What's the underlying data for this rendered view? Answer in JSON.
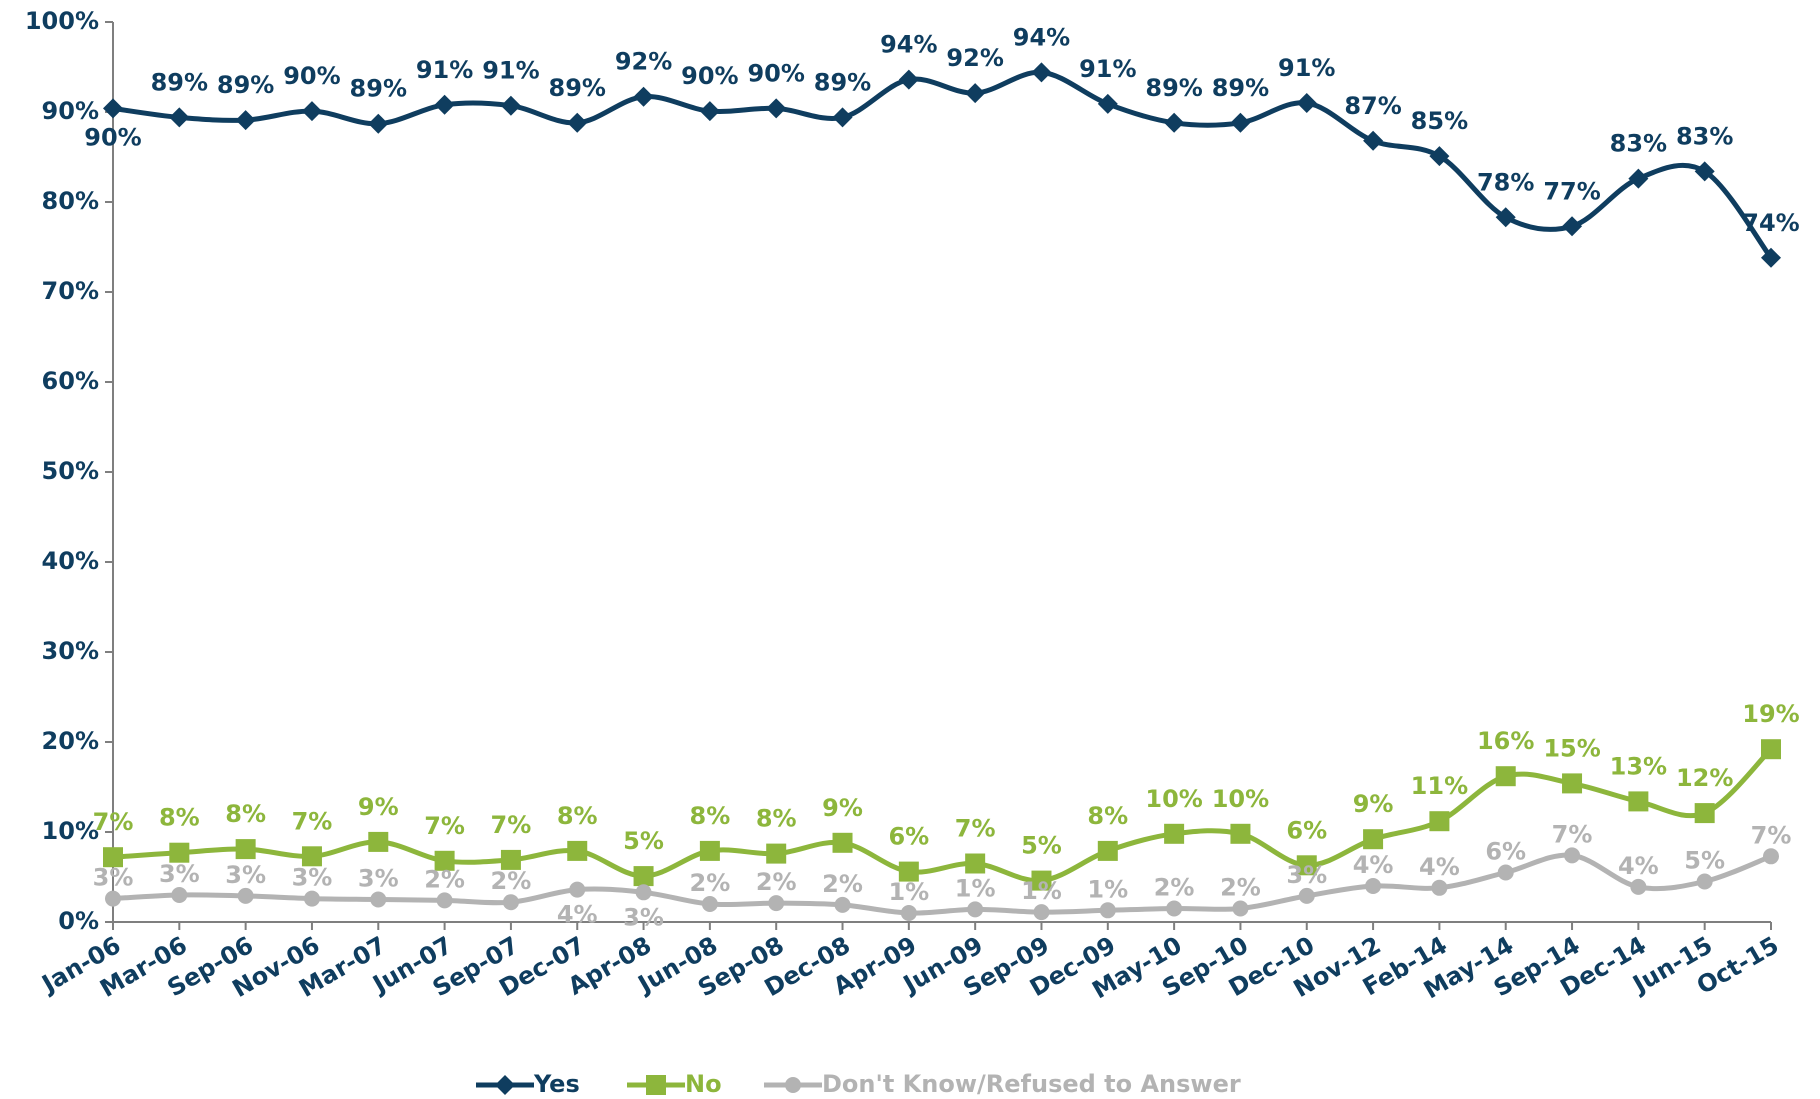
{
  "chart_data": {
    "type": "line",
    "categories": [
      "Jan-06",
      "Mar-06",
      "Sep-06",
      "Nov-06",
      "Mar-07",
      "Jun-07",
      "Sep-07",
      "Dec-07",
      "Apr-08",
      "Jun-08",
      "Sep-08",
      "Dec-08",
      "Apr-09",
      "Jun-09",
      "Sep-09",
      "Dec-09",
      "May-10",
      "Sep-10",
      "Dec-10",
      "Nov-12",
      "Feb-14",
      "May-14",
      "Sep-14",
      "Dec-14",
      "Jun-15",
      "Oct-15"
    ],
    "series": [
      {
        "name": "Yes",
        "color": "#0f3d5f",
        "marker": "diamond",
        "values": [
          90.4,
          89.4,
          89.1,
          90.1,
          88.7,
          90.8,
          90.7,
          88.8,
          91.7,
          90.1,
          90.4,
          89.4,
          93.6,
          92.1,
          94.4,
          90.9,
          88.8,
          88.8,
          91.0,
          86.8,
          85.1,
          78.3,
          77.3,
          82.6,
          83.4,
          73.8
        ],
        "value_labels": [
          "90%",
          "89%",
          "89%",
          "90%",
          "89%",
          "91%",
          "91%",
          "89%",
          "92%",
          "90%",
          "90%",
          "89%",
          "94%",
          "92%",
          "94%",
          "91%",
          "89%",
          "89%",
          "91%",
          "87%",
          "85%",
          "78%",
          "77%",
          "83%",
          "83%",
          "74%"
        ]
      },
      {
        "name": "No",
        "color": "#8db63c",
        "marker": "square",
        "values": [
          7.2,
          7.7,
          8.1,
          7.3,
          8.9,
          6.8,
          6.9,
          7.9,
          5.1,
          7.9,
          7.6,
          8.8,
          5.6,
          6.5,
          4.6,
          7.9,
          9.8,
          9.8,
          6.3,
          9.2,
          11.2,
          16.2,
          15.4,
          13.4,
          12.1,
          19.2
        ],
        "value_labels": [
          "7%",
          "8%",
          "8%",
          "7%",
          "9%",
          "7%",
          "7%",
          "8%",
          "5%",
          "8%",
          "8%",
          "9%",
          "6%",
          "7%",
          "5%",
          "8%",
          "10%",
          "10%",
          "6%",
          "9%",
          "11%",
          "16%",
          "15%",
          "13%",
          "12%",
          "19%"
        ]
      },
      {
        "name": "Don't Know/Refused to Answer",
        "color": "#b3b3b3",
        "marker": "circle",
        "values": [
          2.6,
          3.0,
          2.9,
          2.6,
          2.5,
          2.4,
          2.2,
          3.6,
          3.3,
          2.0,
          2.1,
          1.9,
          1.0,
          1.4,
          1.1,
          1.3,
          1.5,
          1.5,
          2.9,
          4.0,
          3.8,
          5.5,
          7.4,
          3.9,
          4.5,
          7.3
        ],
        "value_labels": [
          "3%",
          "3%",
          "3%",
          "3%",
          "3%",
          "2%",
          "2%",
          "4%",
          "3%",
          "2%",
          "2%",
          "2%",
          "1%",
          "1%",
          "1%",
          "1%",
          "2%",
          "2%",
          "3%",
          "4%",
          "4%",
          "6%",
          "7%",
          "4%",
          "5%",
          "7%"
        ]
      }
    ],
    "ylim": [
      0,
      100
    ],
    "yticks": [
      {
        "value": 0,
        "label": "0%"
      },
      {
        "value": 10,
        "label": "10%"
      },
      {
        "value": 20,
        "label": "20%"
      },
      {
        "value": 30,
        "label": "30%"
      },
      {
        "value": 40,
        "label": "40%"
      },
      {
        "value": 50,
        "label": "50%"
      },
      {
        "value": 60,
        "label": "60%"
      },
      {
        "value": 70,
        "label": "70%"
      },
      {
        "value": 80,
        "label": "80%"
      },
      {
        "value": 90,
        "label": "90%"
      },
      {
        "value": 100,
        "label": "100%"
      }
    ],
    "grid": false,
    "legend": "bottom"
  }
}
